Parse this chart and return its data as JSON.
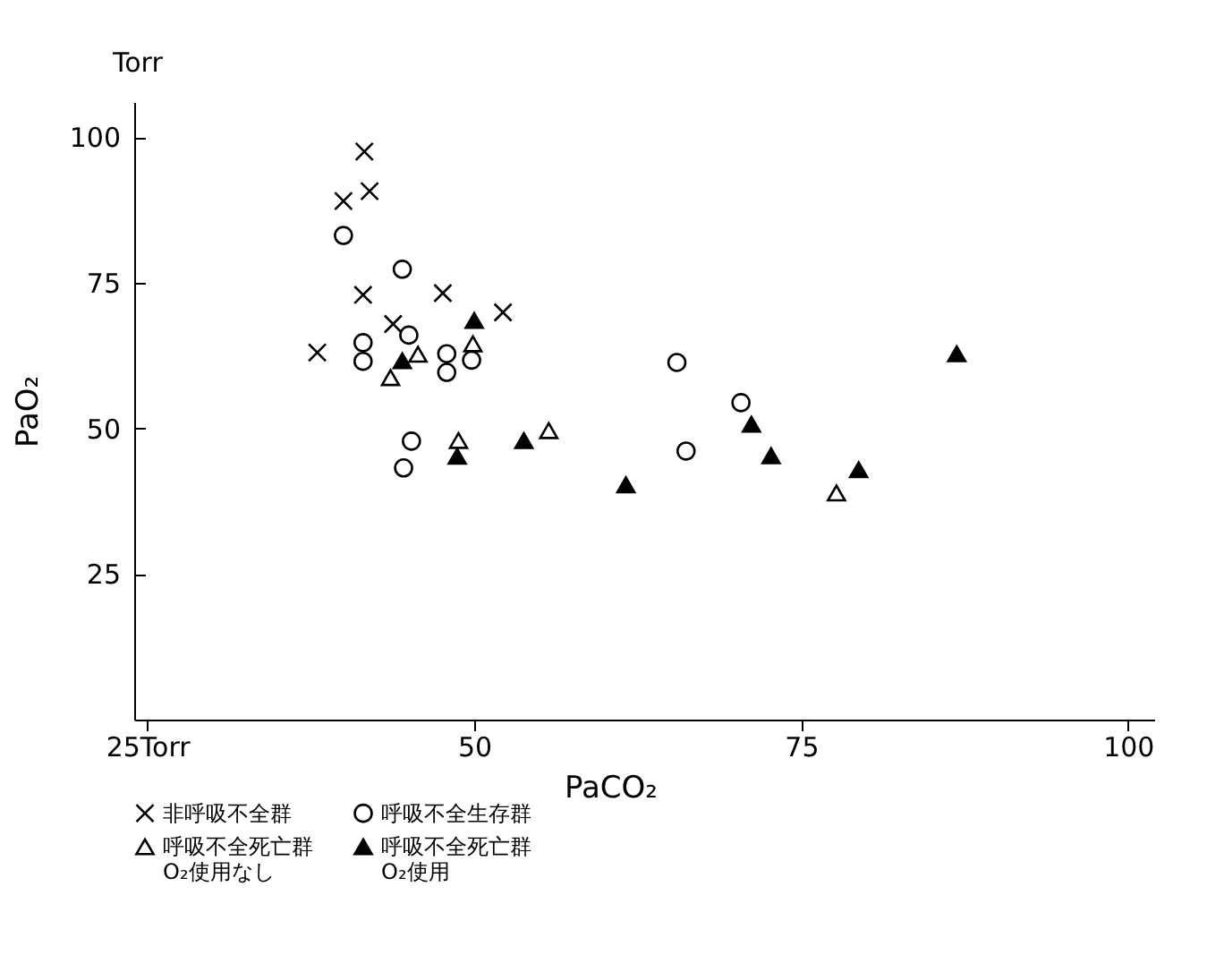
{
  "chart_data": {
    "type": "scatter",
    "xlabel": "PaCO₂",
    "ylabel": "PaO₂",
    "annotations": [
      "Torr"
    ],
    "xlim": [
      24,
      102
    ],
    "xticks": [
      {
        "value": 25,
        "label": "25Torr"
      },
      50,
      75,
      100
    ],
    "ylim": [
      0,
      106
    ],
    "yticks": [
      25,
      50,
      75,
      100
    ],
    "grid": false,
    "legend": "bottom",
    "series": [
      {
        "name": "非呼吸不全群",
        "color": "#000000",
        "marker": "cross",
        "x": [
          41.6,
          40.0,
          42.0,
          41.5,
          47.6,
          52.2,
          43.8,
          38.0
        ],
        "values": [
          97.5,
          89.0,
          90.7,
          72.9,
          73.2,
          69.9,
          67.9,
          63.0
        ]
      },
      {
        "name": "呼吸不全生存群",
        "color": "#ffffff",
        "marker": "circle",
        "x": [
          40.0,
          44.5,
          45.0,
          41.5,
          41.5,
          47.9,
          47.9,
          49.8,
          45.2,
          44.6,
          65.5,
          70.4,
          66.2
        ],
        "values": [
          83.1,
          77.3,
          66.0,
          64.7,
          61.5,
          62.8,
          59.6,
          61.7,
          47.8,
          43.2,
          61.3,
          54.4,
          46.1
        ]
      },
      {
        "name": "呼吸不全死亡群\nO₂使用なし",
        "color": "#ffffff",
        "marker": "triangle",
        "x": [
          45.7,
          43.6,
          49.9,
          48.8,
          55.7,
          77.7
        ],
        "values": [
          62.7,
          58.7,
          64.5,
          47.9,
          49.6,
          38.9
        ]
      },
      {
        "name": "呼吸不全死亡群\nO₂使用",
        "color": "#000000",
        "marker": "triangle",
        "x": [
          44.5,
          50.0,
          48.7,
          53.8,
          71.2,
          72.7,
          79.4,
          61.6,
          86.9
        ],
        "values": [
          61.6,
          68.5,
          45.2,
          47.9,
          50.7,
          45.3,
          42.9,
          40.3,
          62.8
        ]
      }
    ]
  }
}
